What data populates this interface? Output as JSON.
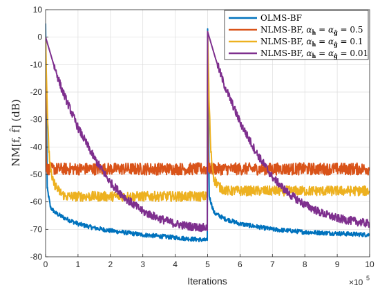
{
  "chart_data": {
    "type": "line",
    "title": "",
    "xlabel": "Iterations",
    "x_exponent_label": "×10",
    "x_exponent_power": "5",
    "ylabel": "NM[f, f̂] (dB)",
    "xlim": [
      0,
      10
    ],
    "ylim": [
      -80,
      10
    ],
    "x_ticks": [
      0,
      1,
      2,
      3,
      4,
      5,
      6,
      7,
      8,
      9,
      10
    ],
    "y_ticks": [
      -80,
      -70,
      -60,
      -50,
      -40,
      -30,
      -20,
      -10,
      0,
      10
    ],
    "grid": true,
    "legend_position": "top-right",
    "series": [
      {
        "name": "OLMS-BF",
        "legend_suffix": "",
        "color": "#0072BD",
        "x": [
          0,
          0.05,
          0.15,
          0.3,
          0.6,
          1,
          1.5,
          2,
          3,
          4,
          4.99,
          5,
          5.05,
          5.2,
          5.5,
          6,
          7,
          8,
          9,
          10
        ],
        "values": [
          5,
          -55,
          -62,
          -64,
          -66,
          -68,
          -69.5,
          -70.5,
          -72,
          -73,
          -74,
          3,
          -58,
          -64,
          -66,
          -68,
          -70,
          -71,
          -71.5,
          -72
        ]
      },
      {
        "name": "NLMS-BF,",
        "legend_suffix": " = 0.5",
        "color": "#D95319",
        "x": [
          0,
          0.01,
          0.03,
          4.99,
          5,
          5.01,
          5.03,
          10
        ],
        "values": [
          0,
          -40,
          -48,
          -48,
          2,
          -40,
          -48,
          -48
        ]
      },
      {
        "name": "NLMS-BF,",
        "legend_suffix": " = 0.1",
        "color": "#EDB120",
        "x": [
          0,
          0.05,
          0.1,
          0.2,
          0.4,
          0.6,
          4.99,
          5,
          5.05,
          5.1,
          5.2,
          5.4,
          5.6,
          10
        ],
        "values": [
          0,
          -25,
          -42,
          -52,
          -56,
          -58,
          -58,
          2,
          -25,
          -42,
          -52,
          -55,
          -56,
          -56
        ]
      },
      {
        "name": "NLMS-BF,",
        "legend_suffix": " = 0.01",
        "color": "#7E2F8E",
        "x": [
          0,
          0.25,
          0.5,
          1,
          1.5,
          2,
          2.5,
          3,
          3.5,
          4,
          4.5,
          4.99,
          5,
          5.25,
          5.5,
          6,
          6.5,
          7,
          7.5,
          8,
          8.5,
          9,
          9.5,
          10
        ],
        "values": [
          0,
          -10,
          -19,
          -33,
          -44,
          -53,
          -59,
          -63.5,
          -66,
          -68,
          -69,
          -69.5,
          2,
          -8,
          -17,
          -31,
          -42,
          -51,
          -57,
          -61,
          -64,
          -66,
          -67,
          -68
        ]
      }
    ],
    "noise_amplitude": [
      0.8,
      2.2,
      1.8,
      1.5
    ]
  }
}
